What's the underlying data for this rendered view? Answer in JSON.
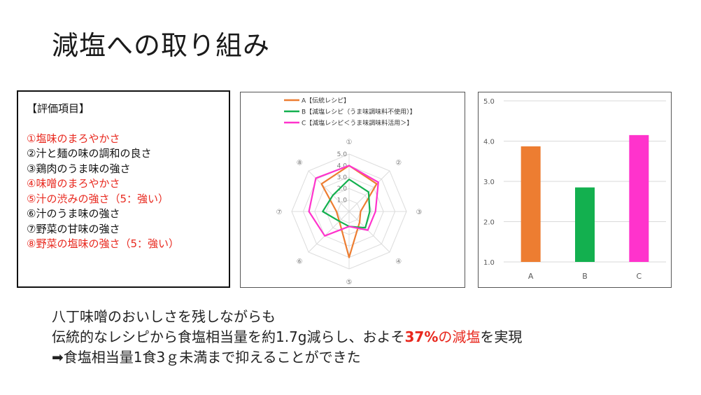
{
  "slide": {
    "title": "減塩への取り組み"
  },
  "criteria": {
    "heading": "【評価項目】",
    "items": [
      {
        "text": "①塩味のまろやかさ",
        "color": "#e8281e"
      },
      {
        "text": "②汁と麺の味の調和の良さ",
        "color": "#111111"
      },
      {
        "text": "③鶏肉のうま味の強さ",
        "color": "#111111"
      },
      {
        "text": "④味噌のまろやかさ",
        "color": "#e8281e"
      },
      {
        "text": "⑤汁の渋みの強さ（5：強い）",
        "color": "#e8281e"
      },
      {
        "text": "⑥汁のうま味の強さ",
        "color": "#111111"
      },
      {
        "text": "⑦野菜の甘味の強さ",
        "color": "#111111"
      },
      {
        "text": "⑧野菜の塩味の強さ（5：強い）",
        "color": "#e8281e"
      }
    ]
  },
  "chart_data": [
    {
      "type": "radar",
      "axes": [
        "①",
        "②",
        "③",
        "④",
        "⑤",
        "⑥",
        "⑦",
        "⑧"
      ],
      "ticks": [
        "1.0",
        "2.0",
        "3.0",
        "4.0",
        "5.0"
      ],
      "range": [
        0,
        5
      ],
      "legend": "top",
      "series": [
        {
          "name": "A【伝統レシピ】",
          "color": "#ed7d31",
          "values": [
            4.0,
            3.4,
            1.0,
            1.3,
            4.0,
            1.2,
            1.1,
            3.4
          ]
        },
        {
          "name": "B【減塩レシピ（うま味調味料不使用）】",
          "color": "#13b04f",
          "values": [
            2.8,
            2.4,
            1.8,
            2.0,
            1.3,
            1.2,
            2.3,
            2.0
          ]
        },
        {
          "name": "C【減塩レシピ＜うま味調味料活用＞】",
          "color": "#ff33cc",
          "values": [
            4.0,
            3.6,
            2.3,
            2.3,
            1.3,
            3.0,
            3.5,
            4.1
          ]
        }
      ]
    },
    {
      "type": "bar",
      "categories": [
        "A",
        "B",
        "C"
      ],
      "values": [
        3.87,
        2.85,
        4.15
      ],
      "colors": [
        "#ed7d31",
        "#13b04f",
        "#ff33cc"
      ],
      "ylim": [
        1.0,
        5.0
      ],
      "yticks": [
        "1.0",
        "2.0",
        "3.0",
        "4.0",
        "5.0"
      ],
      "grid": true
    }
  ],
  "summary": {
    "line1": "八丁味噌のおいしさを残しながらも",
    "line2_pre": "伝統的なレシピから食塩相当量を約1.7g減らし、およそ",
    "line2_num": "37%",
    "line2_red": "の減塩",
    "line2_post": "を実現",
    "line3": "➡食塩相当量1食3ｇ未満まで抑えることができた"
  }
}
